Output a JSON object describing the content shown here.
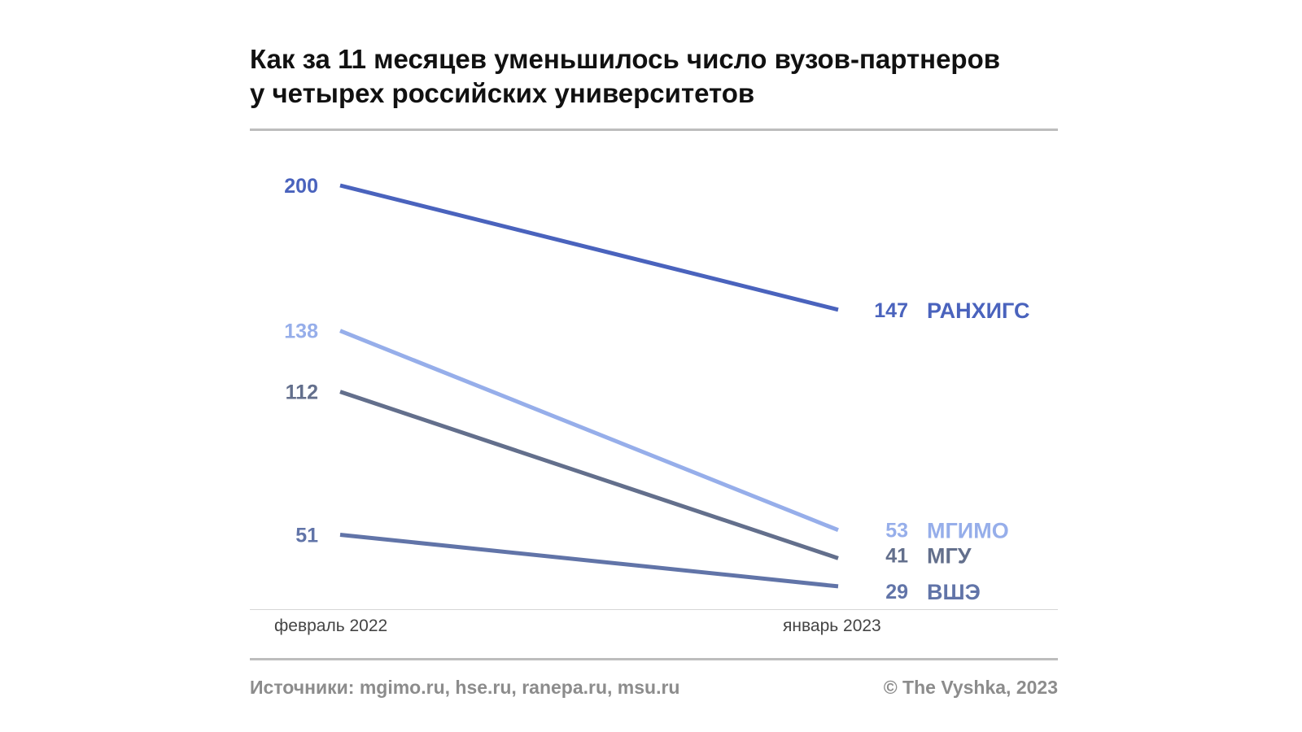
{
  "title_lines": [
    "Как за 11 месяцев уменьшилось число вузов-партнеров",
    "у четырех российских университетов"
  ],
  "footer": {
    "sources": "Источники: mgimo.ru, hse.ru, ranepa.ru, msu.ru",
    "copyright": "© The Vyshka, 2023"
  },
  "chart_data": {
    "type": "line",
    "x": [
      "февраль 2022",
      "январь 2023"
    ],
    "series": [
      {
        "name": "РАНХИГС",
        "values": [
          200,
          147
        ],
        "color": "#4a63bd"
      },
      {
        "name": "МГИМО",
        "values": [
          138,
          53
        ],
        "color": "#96aeea"
      },
      {
        "name": "МГУ",
        "values": [
          112,
          41
        ],
        "color": "#636f8c"
      },
      {
        "name": "ВШЭ",
        "values": [
          51,
          29
        ],
        "color": "#6174a8"
      }
    ],
    "ylim": [
      0,
      220
    ],
    "grid": false,
    "legend": "direct labels at line ends"
  }
}
